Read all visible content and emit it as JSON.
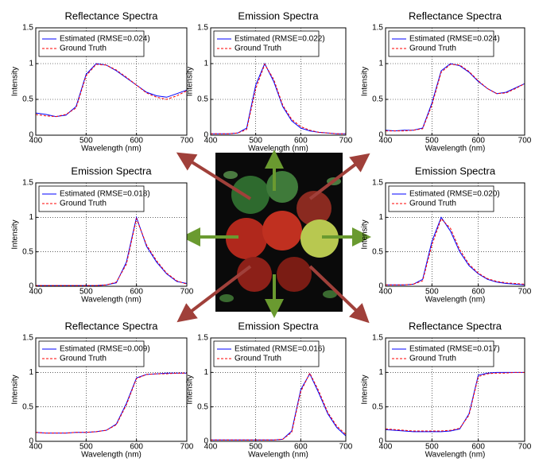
{
  "chart_data": [
    {
      "type": "line",
      "title": "Reflectance Spectra",
      "xlabel": "Wavelength (nm)",
      "ylabel": "Intensity",
      "x": [
        400,
        420,
        440,
        460,
        480,
        500,
        520,
        540,
        560,
        580,
        600,
        620,
        640,
        660,
        680,
        700
      ],
      "series": [
        {
          "name": "Estimated (RMSE=0.024)",
          "color": "#0000ff",
          "linestyle": "solid",
          "values": [
            0.31,
            0.29,
            0.26,
            0.28,
            0.4,
            0.85,
            1.0,
            0.98,
            0.9,
            0.8,
            0.7,
            0.6,
            0.55,
            0.53,
            0.58,
            0.63
          ]
        },
        {
          "name": "Ground Truth",
          "color": "#ff0000",
          "linestyle": "dashed",
          "values": [
            0.29,
            0.27,
            0.26,
            0.29,
            0.38,
            0.83,
            0.99,
            0.98,
            0.91,
            0.81,
            0.7,
            0.59,
            0.53,
            0.5,
            0.55,
            0.62
          ]
        }
      ],
      "xlim": [
        400,
        700
      ],
      "ylim": [
        0,
        1.5
      ],
      "xticks": [
        400,
        500,
        600,
        700
      ],
      "yticks": [
        0,
        0.5,
        1,
        1.5
      ],
      "grid": true,
      "legend": "upper left"
    },
    {
      "type": "line",
      "title": "Emission Spectra",
      "xlabel": "Wavelength (nm)",
      "ylabel": "Intensity",
      "x": [
        400,
        420,
        440,
        460,
        480,
        500,
        520,
        540,
        560,
        580,
        600,
        620,
        640,
        660,
        680,
        700
      ],
      "series": [
        {
          "name": "Estimated (RMSE=0.022)",
          "color": "#0000ff",
          "linestyle": "solid",
          "values": [
            0.02,
            0.02,
            0.02,
            0.03,
            0.1,
            0.7,
            1.0,
            0.75,
            0.4,
            0.2,
            0.1,
            0.06,
            0.04,
            0.03,
            0.02,
            0.02
          ]
        },
        {
          "name": "Ground Truth",
          "color": "#ff0000",
          "linestyle": "dashed",
          "values": [
            0.02,
            0.02,
            0.02,
            0.03,
            0.08,
            0.65,
            0.99,
            0.78,
            0.42,
            0.22,
            0.12,
            0.07,
            0.04,
            0.03,
            0.02,
            0.02
          ]
        }
      ],
      "xlim": [
        400,
        700
      ],
      "ylim": [
        0,
        1.5
      ],
      "xticks": [
        400,
        500,
        600,
        700
      ],
      "yticks": [
        0,
        0.5,
        1,
        1.5
      ],
      "grid": true,
      "legend": "upper left"
    },
    {
      "type": "line",
      "title": "Reflectance Spectra",
      "xlabel": "Wavelength (nm)",
      "ylabel": "Intensity",
      "x": [
        400,
        420,
        440,
        460,
        480,
        500,
        520,
        540,
        560,
        580,
        600,
        620,
        640,
        660,
        680,
        700
      ],
      "series": [
        {
          "name": "Estimated (RMSE=0.024)",
          "color": "#0000ff",
          "linestyle": "solid",
          "values": [
            0.07,
            0.06,
            0.07,
            0.07,
            0.1,
            0.45,
            0.9,
            1.0,
            0.97,
            0.88,
            0.75,
            0.65,
            0.58,
            0.6,
            0.66,
            0.72
          ]
        },
        {
          "name": "Ground Truth",
          "color": "#ff0000",
          "linestyle": "dashed",
          "values": [
            0.06,
            0.06,
            0.06,
            0.07,
            0.09,
            0.42,
            0.88,
            0.99,
            0.98,
            0.89,
            0.76,
            0.65,
            0.58,
            0.59,
            0.65,
            0.72
          ]
        }
      ],
      "xlim": [
        400,
        700
      ],
      "ylim": [
        0,
        1.5
      ],
      "xticks": [
        400,
        500,
        600,
        700
      ],
      "yticks": [
        0,
        0.5,
        1,
        1.5
      ],
      "grid": true,
      "legend": "upper left"
    },
    {
      "type": "line",
      "title": "Emission Spectra",
      "xlabel": "Wavelength (nm)",
      "ylabel": "Intensity",
      "x": [
        400,
        420,
        440,
        460,
        480,
        500,
        520,
        540,
        560,
        580,
        600,
        620,
        640,
        660,
        680,
        700
      ],
      "series": [
        {
          "name": "Estimated (RMSE=0.018)",
          "color": "#0000ff",
          "linestyle": "solid",
          "values": [
            0.01,
            0.01,
            0.01,
            0.01,
            0.01,
            0.01,
            0.01,
            0.02,
            0.05,
            0.35,
            1.0,
            0.58,
            0.35,
            0.18,
            0.07,
            0.04
          ]
        },
        {
          "name": "Ground Truth",
          "color": "#ff0000",
          "linestyle": "dashed",
          "values": [
            0.01,
            0.01,
            0.01,
            0.01,
            0.01,
            0.01,
            0.01,
            0.02,
            0.06,
            0.32,
            0.98,
            0.6,
            0.37,
            0.19,
            0.08,
            0.03
          ]
        }
      ],
      "xlim": [
        400,
        700
      ],
      "ylim": [
        0,
        1.5
      ],
      "xticks": [
        400,
        500,
        600,
        700
      ],
      "yticks": [
        0,
        0.5,
        1,
        1.5
      ],
      "grid": true,
      "legend": "upper left"
    },
    {
      "type": "line",
      "title": "Emission Spectra",
      "xlabel": "Wavelength (nm)",
      "ylabel": "Intensity",
      "x": [
        400,
        420,
        440,
        460,
        480,
        500,
        520,
        540,
        560,
        580,
        600,
        620,
        640,
        660,
        680,
        700
      ],
      "series": [
        {
          "name": "Estimated (RMSE=0.020)",
          "color": "#0000ff",
          "linestyle": "solid",
          "values": [
            0.02,
            0.02,
            0.02,
            0.03,
            0.1,
            0.65,
            1.0,
            0.8,
            0.5,
            0.3,
            0.18,
            0.1,
            0.06,
            0.04,
            0.03,
            0.02
          ]
        },
        {
          "name": "Ground Truth",
          "color": "#ff0000",
          "linestyle": "dashed",
          "values": [
            0.02,
            0.02,
            0.02,
            0.03,
            0.08,
            0.6,
            0.98,
            0.84,
            0.53,
            0.32,
            0.19,
            0.11,
            0.07,
            0.05,
            0.04,
            0.03
          ]
        }
      ],
      "xlim": [
        400,
        700
      ],
      "ylim": [
        0,
        1.5
      ],
      "xticks": [
        400,
        500,
        600,
        700
      ],
      "yticks": [
        0,
        0.5,
        1,
        1.5
      ],
      "grid": true,
      "legend": "upper left"
    },
    {
      "type": "line",
      "title": "Reflectance Spectra",
      "xlabel": "Wavelength (nm)",
      "ylabel": "Intensity",
      "x": [
        400,
        420,
        440,
        460,
        480,
        500,
        520,
        540,
        560,
        580,
        600,
        620,
        640,
        660,
        680,
        700
      ],
      "series": [
        {
          "name": "Estimated (RMSE=0.009)",
          "color": "#0000ff",
          "linestyle": "solid",
          "values": [
            0.13,
            0.12,
            0.12,
            0.12,
            0.13,
            0.13,
            0.14,
            0.16,
            0.25,
            0.55,
            0.92,
            0.97,
            0.98,
            0.99,
            0.99,
            0.99
          ]
        },
        {
          "name": "Ground Truth",
          "color": "#ff0000",
          "linestyle": "dashed",
          "values": [
            0.13,
            0.12,
            0.12,
            0.12,
            0.13,
            0.13,
            0.14,
            0.16,
            0.24,
            0.53,
            0.91,
            0.97,
            0.98,
            0.98,
            0.99,
            0.99
          ]
        }
      ],
      "xlim": [
        400,
        700
      ],
      "ylim": [
        0,
        1.5
      ],
      "xticks": [
        400,
        500,
        600,
        700
      ],
      "yticks": [
        0,
        0.5,
        1,
        1.5
      ],
      "grid": true,
      "legend": "upper left"
    },
    {
      "type": "line",
      "title": "Emission Spectra",
      "xlabel": "Wavelength (nm)",
      "ylabel": "Intensity",
      "x": [
        400,
        420,
        440,
        460,
        480,
        500,
        520,
        540,
        560,
        580,
        600,
        620,
        640,
        660,
        680,
        700
      ],
      "series": [
        {
          "name": "Estimated (RMSE=0.016)",
          "color": "#0000ff",
          "linestyle": "solid",
          "values": [
            0.02,
            0.02,
            0.02,
            0.02,
            0.02,
            0.02,
            0.02,
            0.02,
            0.03,
            0.15,
            0.75,
            0.98,
            0.7,
            0.4,
            0.2,
            0.08
          ]
        },
        {
          "name": "Ground Truth",
          "color": "#ff0000",
          "linestyle": "dashed",
          "values": [
            0.02,
            0.02,
            0.02,
            0.02,
            0.02,
            0.02,
            0.02,
            0.02,
            0.03,
            0.13,
            0.72,
            0.99,
            0.73,
            0.42,
            0.22,
            0.1
          ]
        }
      ],
      "xlim": [
        400,
        700
      ],
      "ylim": [
        0,
        1.5
      ],
      "xticks": [
        400,
        500,
        600,
        700
      ],
      "yticks": [
        0,
        0.5,
        1,
        1.5
      ],
      "grid": true,
      "legend": "upper left"
    },
    {
      "type": "line",
      "title": "Reflectance Spectra",
      "xlabel": "Wavelength (nm)",
      "ylabel": "Intensity",
      "x": [
        400,
        420,
        440,
        460,
        480,
        500,
        520,
        540,
        560,
        580,
        600,
        620,
        640,
        660,
        680,
        700
      ],
      "series": [
        {
          "name": "Estimated (RMSE=0.017)",
          "color": "#0000ff",
          "linestyle": "solid",
          "values": [
            0.17,
            0.16,
            0.15,
            0.14,
            0.14,
            0.14,
            0.14,
            0.15,
            0.18,
            0.4,
            0.96,
            0.99,
            1.0,
            1.0,
            1.0,
            1.0
          ]
        },
        {
          "name": "Ground Truth",
          "color": "#ff0000",
          "linestyle": "dashed",
          "values": [
            0.18,
            0.17,
            0.16,
            0.15,
            0.15,
            0.15,
            0.15,
            0.16,
            0.19,
            0.38,
            0.94,
            0.98,
            0.99,
            0.99,
            1.0,
            1.0
          ]
        }
      ],
      "xlim": [
        400,
        700
      ],
      "ylim": [
        0,
        1.5
      ],
      "xticks": [
        400,
        500,
        600,
        700
      ],
      "yticks": [
        0,
        0.5,
        1,
        1.5
      ],
      "grid": true,
      "legend": "upper left"
    }
  ]
}
